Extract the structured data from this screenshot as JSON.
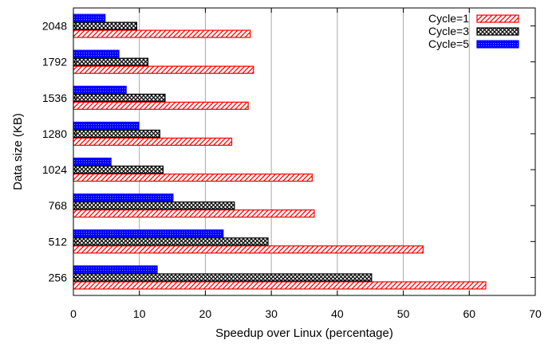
{
  "chart_data": {
    "type": "bar",
    "orientation": "horizontal",
    "title": "",
    "xlabel": "Speedup over Linux (percentage)",
    "ylabel": "Data size (KB)",
    "xlim": [
      0,
      70
    ],
    "x_ticks": [
      "0",
      "10",
      "20",
      "30",
      "40",
      "50",
      "60",
      "70"
    ],
    "grid": "vertical",
    "legend_position": "top-right",
    "categories": [
      "256",
      "512",
      "768",
      "1024",
      "1280",
      "1536",
      "1792",
      "2048"
    ],
    "series": [
      {
        "name": "Cycle=1",
        "color": "#ff0000",
        "pattern": "diagonal-hatch",
        "values": [
          62.5,
          53,
          36.5,
          36.2,
          24,
          26.5,
          27.3,
          26.8
        ]
      },
      {
        "name": "Cycle=3",
        "color": "#000000",
        "pattern": "crosshatch",
        "values": [
          45.2,
          29.5,
          24.4,
          13.6,
          13.1,
          13.9,
          11.3,
          9.6
        ]
      },
      {
        "name": "Cycle=5",
        "color": "#0000ff",
        "pattern": "dense-dots",
        "values": [
          12.7,
          22.7,
          15.1,
          5.7,
          9.9,
          8,
          6.9,
          4.8
        ]
      }
    ]
  }
}
